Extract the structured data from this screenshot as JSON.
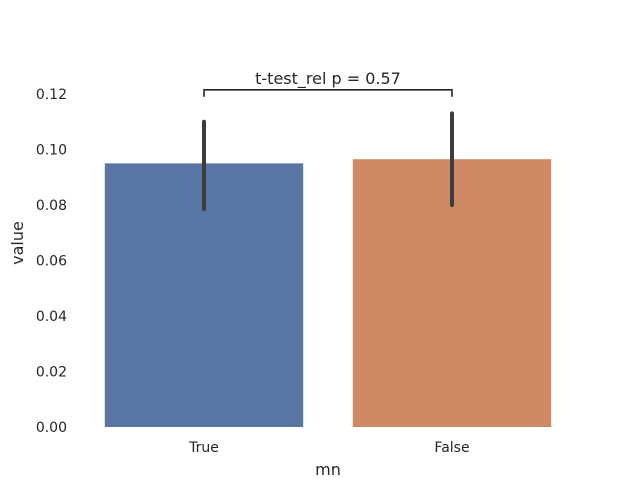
{
  "chart_data": {
    "type": "bar",
    "title": "",
    "xlabel": "mn",
    "ylabel": "value",
    "categories": [
      "True",
      "False"
    ],
    "values": [
      0.095,
      0.0965
    ],
    "error_bars": [
      {
        "low": 0.0785,
        "high": 0.11
      },
      {
        "low": 0.08,
        "high": 0.113
      }
    ],
    "colors": [
      "#5975a4",
      "#cc8963"
    ],
    "error_color": "#3d3d3d",
    "ylim": [
      0,
      0.12
    ],
    "yticks": [
      "0.00",
      "0.02",
      "0.04",
      "0.06",
      "0.08",
      "0.10",
      "0.12"
    ],
    "grid": false,
    "annotation": {
      "text": "t-test_rel p = 0.57",
      "bracket_y": 0.1215,
      "bracket_drop": 0.0025
    }
  }
}
